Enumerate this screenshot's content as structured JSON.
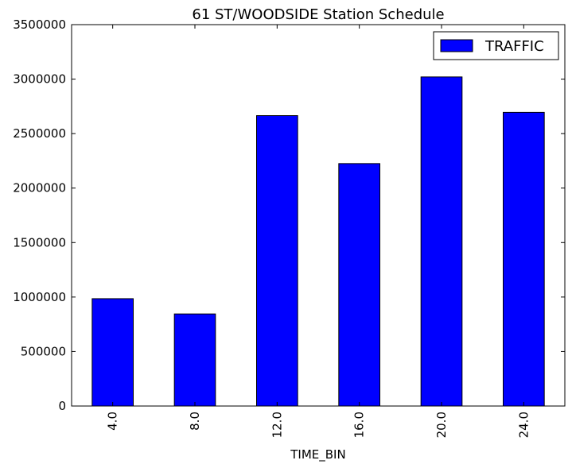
{
  "chart_data": {
    "type": "bar",
    "title": "61 ST/WOODSIDE Station Schedule",
    "xlabel": "TIME_BIN",
    "ylabel": "",
    "categories": [
      "4.0",
      "8.0",
      "12.0",
      "16.0",
      "20.0",
      "24.0"
    ],
    "series": [
      {
        "name": "TRAFFIC",
        "color": "#0000ff",
        "values": [
          985000,
          845000,
          2665000,
          2225000,
          3020000,
          2695000
        ]
      }
    ],
    "ylim": [
      0,
      3500000
    ],
    "yticks": [
      0,
      500000,
      1000000,
      1500000,
      2000000,
      2500000,
      3000000,
      3500000
    ],
    "ytick_labels": [
      "0",
      "500000",
      "1000000",
      "1500000",
      "2000000",
      "2500000",
      "3000000",
      "3500000"
    ],
    "grid": false,
    "legend": {
      "position": "top-right"
    }
  }
}
